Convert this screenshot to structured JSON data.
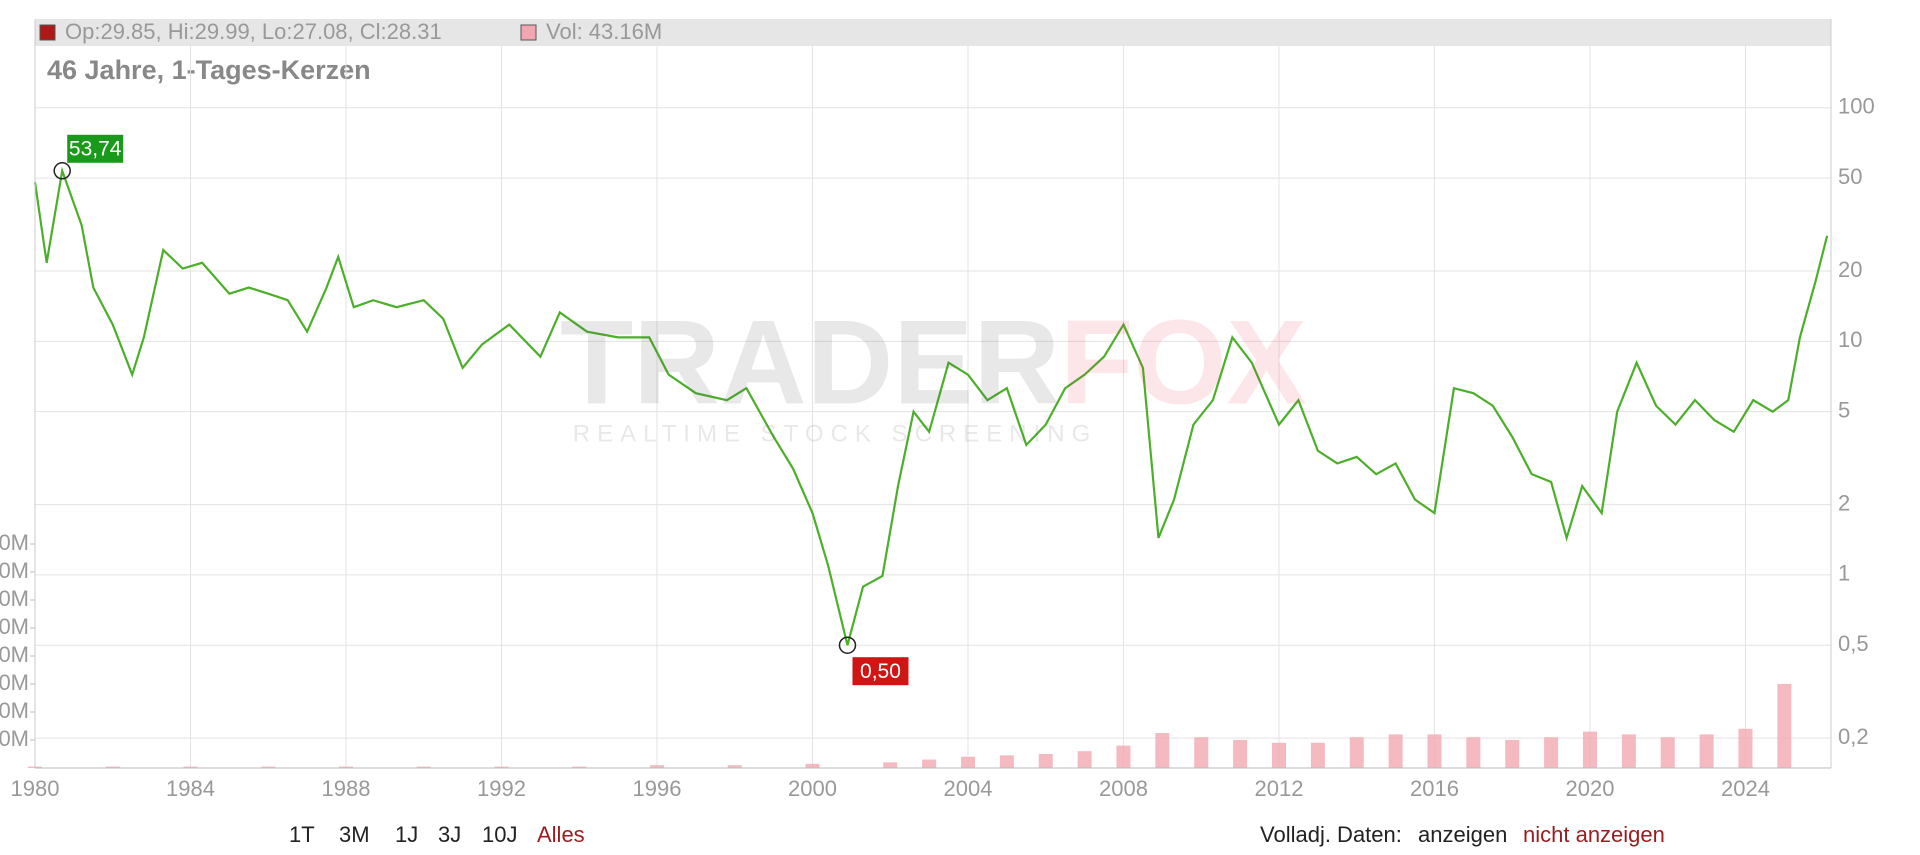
{
  "chart_data": {
    "type": "line",
    "title": "46 Jahre, 1-Tages-Kerzen",
    "ohlc_label": "Op:29.85, Hi:29.99, Lo:27.08, Cl:28.31",
    "volume_label": "Vol: 43.16M",
    "ohlc_color": "#b01818",
    "volume_color": "#f2a7b0",
    "log_scale": true,
    "grid": true,
    "x": [
      1980.0,
      1980.3,
      1980.7,
      1981.2,
      1981.5,
      1982.0,
      1982.5,
      1982.8,
      1983.3,
      1983.8,
      1984.3,
      1985.0,
      1985.5,
      1986.0,
      1986.5,
      1987.0,
      1987.5,
      1987.8,
      1988.2,
      1988.7,
      1989.3,
      1990.0,
      1990.5,
      1991.0,
      1991.5,
      1992.2,
      1993.0,
      1993.5,
      1994.2,
      1995.0,
      1995.8,
      1996.3,
      1997.0,
      1997.8,
      1998.3,
      1999.0,
      1999.5,
      2000.0,
      2000.4,
      2000.9,
      2001.3,
      2001.8,
      2002.2,
      2002.6,
      2003.0,
      2003.5,
      2004.0,
      2004.5,
      2005.0,
      2005.5,
      2006.0,
      2006.5,
      2007.0,
      2007.5,
      2008.0,
      2008.5,
      2008.9,
      2009.3,
      2009.8,
      2010.3,
      2010.8,
      2011.3,
      2012.0,
      2012.5,
      2013.0,
      2013.5,
      2014.0,
      2014.5,
      2015.0,
      2015.5,
      2016.0,
      2016.5,
      2017.0,
      2017.5,
      2018.0,
      2018.5,
      2019.0,
      2019.4,
      2019.8,
      2020.3,
      2020.7,
      2021.2,
      2021.7,
      2022.2,
      2022.7,
      2023.2,
      2023.7,
      2024.2,
      2024.7,
      2025.1,
      2025.4,
      2025.8,
      2026.1
    ],
    "series": [
      {
        "color": "#4caf2a",
        "values": [
          48,
          21.7,
          53.74,
          31.4,
          17,
          11.8,
          7.2,
          10.4,
          24.6,
          20.5,
          21.7,
          16,
          17,
          16,
          15,
          11,
          17,
          23,
          14,
          15,
          14,
          15,
          12.5,
          7.7,
          9.7,
          11.8,
          8.6,
          13.3,
          11,
          10.4,
          10.4,
          7.2,
          6,
          5.6,
          6.3,
          3.9,
          2.85,
          1.84,
          1.1,
          0.5,
          0.89,
          0.99,
          2.4,
          5,
          4.1,
          8.1,
          7.2,
          5.6,
          6.3,
          3.6,
          4.4,
          6.3,
          7.2,
          8.6,
          11.8,
          7.7,
          1.44,
          2.1,
          4.4,
          5.6,
          10.4,
          8.1,
          4.4,
          5.6,
          3.4,
          3.0,
          3.2,
          2.7,
          3.0,
          2.1,
          1.84,
          6.3,
          6,
          5.3,
          3.9,
          2.7,
          2.5,
          1.44,
          2.4,
          1.84,
          5,
          8.1,
          5.3,
          4.4,
          5.6,
          4.6,
          4.1,
          5.6,
          5,
          5.6,
          10.4,
          18,
          28.31
        ]
      },
      {
        "axis": "y2",
        "color": "#f2a7b0",
        "x": [
          1980,
          1982,
          1984,
          1986,
          1988,
          1990,
          1992,
          1994,
          1996,
          1998,
          2000,
          2002,
          2003,
          2004,
          2005,
          2006,
          2007,
          2008,
          2009,
          2010,
          2011,
          2012,
          2013,
          2014,
          2015,
          2016,
          2017,
          2018,
          2019,
          2020,
          2021,
          2022,
          2023,
          2024,
          2025
        ],
        "values": [
          1,
          1,
          1,
          1,
          1,
          1,
          1,
          1,
          2,
          2,
          3,
          4,
          6,
          8,
          9,
          10,
          12,
          16,
          25,
          22,
          20,
          18,
          18,
          22,
          24,
          24,
          22,
          20,
          22,
          26,
          24,
          22,
          24,
          28,
          60
        ]
      }
    ],
    "xlim": [
      1980,
      2026.2
    ],
    "xticks": [
      1980,
      1984,
      1988,
      1992,
      1996,
      2000,
      2004,
      2008,
      2012,
      2016,
      2020,
      2024
    ],
    "ylim": [
      0.149,
      240
    ],
    "yticks": [
      100,
      50,
      20,
      10,
      5,
      2,
      1,
      {
        "value": 0.5,
        "label": "0,5"
      },
      {
        "value": 0.2,
        "label": "0,2"
      }
    ],
    "y2lim": [
      0,
      535
    ],
    "y2ticks": [
      {
        "value": 20,
        "label": "0M"
      },
      {
        "value": 40,
        "label": "0M"
      },
      {
        "value": 60,
        "label": "0M"
      },
      {
        "value": 80,
        "label": "0M"
      },
      {
        "value": 100,
        "label": "0M"
      },
      {
        "value": 120,
        "label": "0M"
      },
      {
        "value": 140,
        "label": "0M"
      },
      {
        "value": 160,
        "label": "0M"
      }
    ],
    "annotations": [
      {
        "text": "53,74",
        "x": 1980.7,
        "y": 53.74,
        "color": "#1a9a1a"
      },
      {
        "text": "0,50",
        "x": 2000.9,
        "y": 0.5,
        "color": "#d01515"
      }
    ],
    "watermark": {
      "brand_a": "TRADER",
      "brand_b": "FOX",
      "tagline": "REALTIME STOCK SCREENING"
    }
  },
  "controls": {
    "ranges": [
      "1T",
      "3M",
      "1J",
      "3J",
      "10J",
      "Alles"
    ],
    "active_range": 5,
    "adjusted_label": "Volladj. Daten:",
    "show": "anzeigen",
    "hide": "nicht anzeigen"
  }
}
